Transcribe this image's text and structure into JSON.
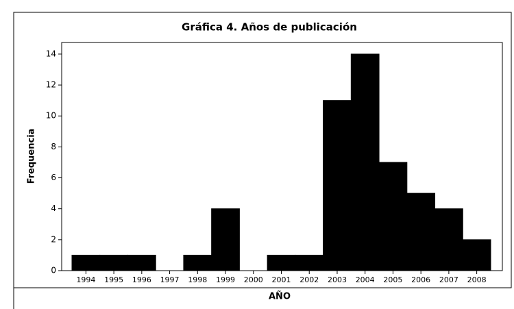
{
  "chart_data": {
    "type": "bar",
    "title": "Gráfica 4. Años de publicación",
    "x_label": "AÑO",
    "y_label": "Frequencia",
    "categories": [
      "1994",
      "1995",
      "1996",
      "1997",
      "1998",
      "1999",
      "2000",
      "2001",
      "2002",
      "2003",
      "2004",
      "2005",
      "2006",
      "2007",
      "2008"
    ],
    "values": [
      1,
      1,
      1,
      0,
      1,
      4,
      0,
      1,
      1,
      11,
      14,
      7,
      5,
      4,
      2
    ],
    "color": "#000000",
    "ylim": [
      0,
      14.75
    ],
    "yticks": [
      0,
      2,
      4,
      6,
      8,
      10,
      12,
      14
    ],
    "grid": false
  }
}
